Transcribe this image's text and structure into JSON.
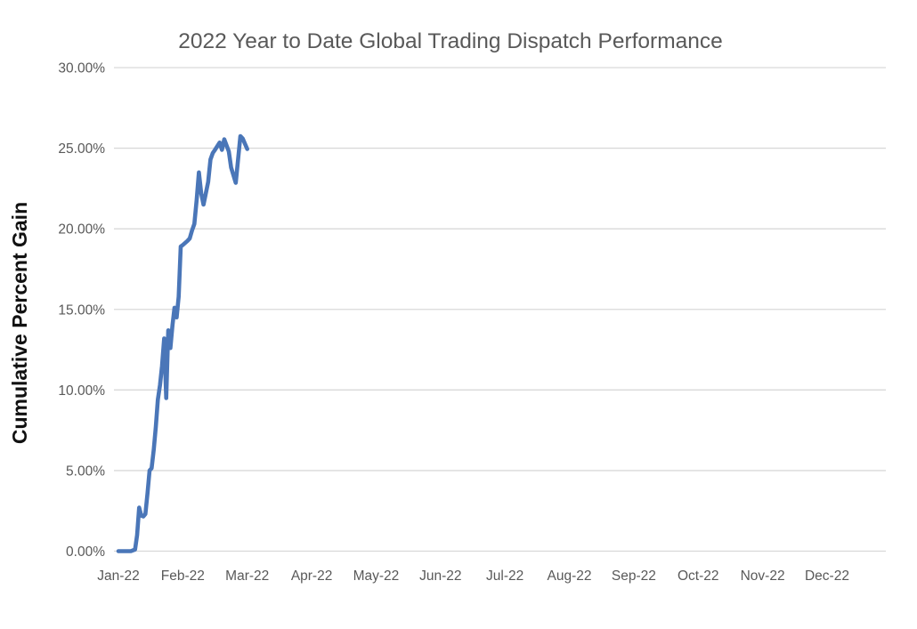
{
  "chart_data": {
    "type": "line",
    "title": "2022 Year to Date Global Trading Dispatch Performance",
    "xlabel": "",
    "ylabel": "Cumulative Percent Gain",
    "x_tick_labels": [
      "Jan-22",
      "Feb-22",
      "Mar-22",
      "Apr-22",
      "May-22",
      "Jun-22",
      "Jul-22",
      "Aug-22",
      "Sep-22",
      "Oct-22",
      "Nov-22",
      "Dec-22"
    ],
    "y_tick_labels": [
      "0.00%",
      "5.00%",
      "10.00%",
      "15.00%",
      "20.00%",
      "25.00%",
      "30.00%"
    ],
    "ylim": [
      0,
      30
    ],
    "y_tick_step": 5,
    "grid": "horizontal-only",
    "legend": "none",
    "series": [
      {
        "name": "cumulative-percent-gain",
        "x_unit": "day-of-year-2022",
        "points": [
          [
            1,
            0.0
          ],
          [
            4,
            0.0
          ],
          [
            7,
            0.0
          ],
          [
            9,
            0.1
          ],
          [
            10,
            1.0
          ],
          [
            11,
            2.7
          ],
          [
            12,
            2.2
          ],
          [
            13,
            2.15
          ],
          [
            14,
            2.3
          ],
          [
            15,
            3.6
          ],
          [
            16,
            5.0
          ],
          [
            17,
            5.15
          ],
          [
            18,
            6.3
          ],
          [
            19,
            7.7
          ],
          [
            20,
            9.4
          ],
          [
            21,
            10.3
          ],
          [
            22,
            11.5
          ],
          [
            23,
            13.2
          ],
          [
            24,
            9.5
          ],
          [
            25,
            13.7
          ],
          [
            26,
            12.6
          ],
          [
            27,
            14.0
          ],
          [
            28,
            15.1
          ],
          [
            29,
            14.5
          ],
          [
            30,
            15.8
          ],
          [
            31,
            18.9
          ],
          [
            32,
            19.0
          ],
          [
            34,
            19.25
          ],
          [
            35,
            19.4
          ],
          [
            36,
            19.9
          ],
          [
            37,
            20.3
          ],
          [
            38,
            21.8
          ],
          [
            39,
            23.5
          ],
          [
            40,
            22.2
          ],
          [
            41,
            21.5
          ],
          [
            43,
            22.9
          ],
          [
            44,
            24.3
          ],
          [
            45,
            24.7
          ],
          [
            46,
            24.9
          ],
          [
            48,
            25.35
          ],
          [
            49,
            24.9
          ],
          [
            50,
            25.55
          ],
          [
            52,
            24.8
          ],
          [
            53,
            23.8
          ],
          [
            55,
            22.85
          ],
          [
            56,
            24.3
          ],
          [
            57,
            25.75
          ],
          [
            58,
            25.6
          ],
          [
            60,
            24.95
          ]
        ]
      }
    ],
    "colors": {
      "line": "#4a76b8",
      "gridline": "#d9d9d9",
      "title_text": "#595959",
      "tick_text": "#595959",
      "axis_title_text": "#111111",
      "background": "#ffffff"
    }
  }
}
